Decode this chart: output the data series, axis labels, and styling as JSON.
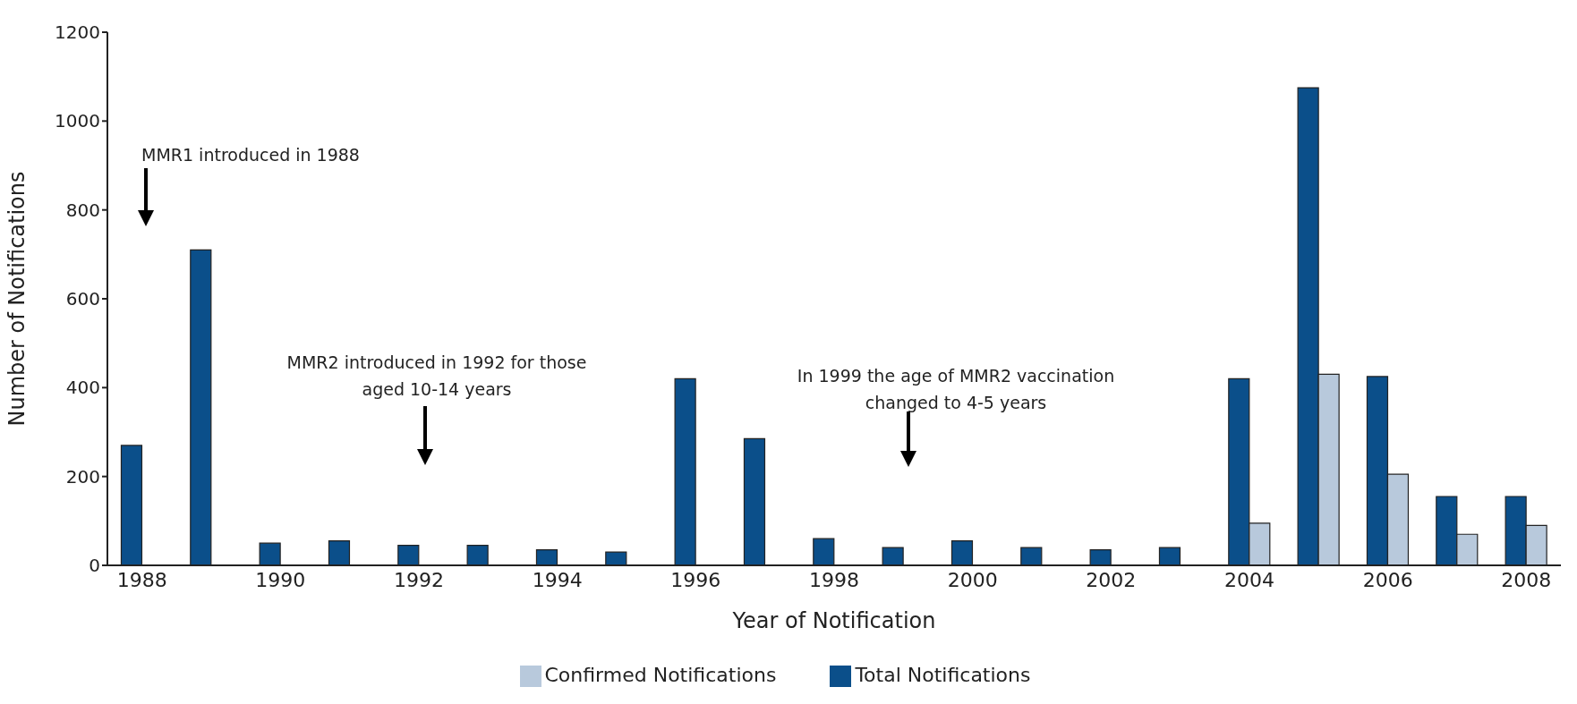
{
  "chart_data": {
    "type": "bar",
    "xlabel": "Year of Notification",
    "ylabel": "Number of Notifications",
    "categories": [
      "1988",
      null,
      "1990",
      null,
      "1992",
      null,
      "1994",
      null,
      "1996",
      null,
      "1998",
      null,
      "2000",
      null,
      "2002",
      null,
      "2004",
      null,
      "2006",
      null,
      "2008"
    ],
    "series": [
      {
        "name": "Total Notifications",
        "color": "#0b4f8a",
        "values": [
          270,
          710,
          50,
          55,
          45,
          45,
          35,
          30,
          420,
          285,
          60,
          40,
          55,
          40,
          35,
          40,
          420,
          1075,
          425,
          155,
          155
        ]
      },
      {
        "name": "Confirmed Notifications",
        "color": "#b8c9dc",
        "values": [
          null,
          null,
          null,
          null,
          null,
          null,
          null,
          null,
          null,
          null,
          null,
          null,
          null,
          null,
          null,
          null,
          95,
          430,
          205,
          70,
          90
        ]
      }
    ],
    "ylim": [
      0,
      1200
    ],
    "yticks": [
      0,
      200,
      400,
      600,
      800,
      1000,
      1200
    ],
    "grid": false,
    "legend": "bottom",
    "annotations": [
      "MMR1 introduced in 1988",
      "MMR2 introduced in 1992 for those aged 10-14 years",
      "In 1999 the age of MMR2 vaccination changed to 4-5 years"
    ]
  }
}
